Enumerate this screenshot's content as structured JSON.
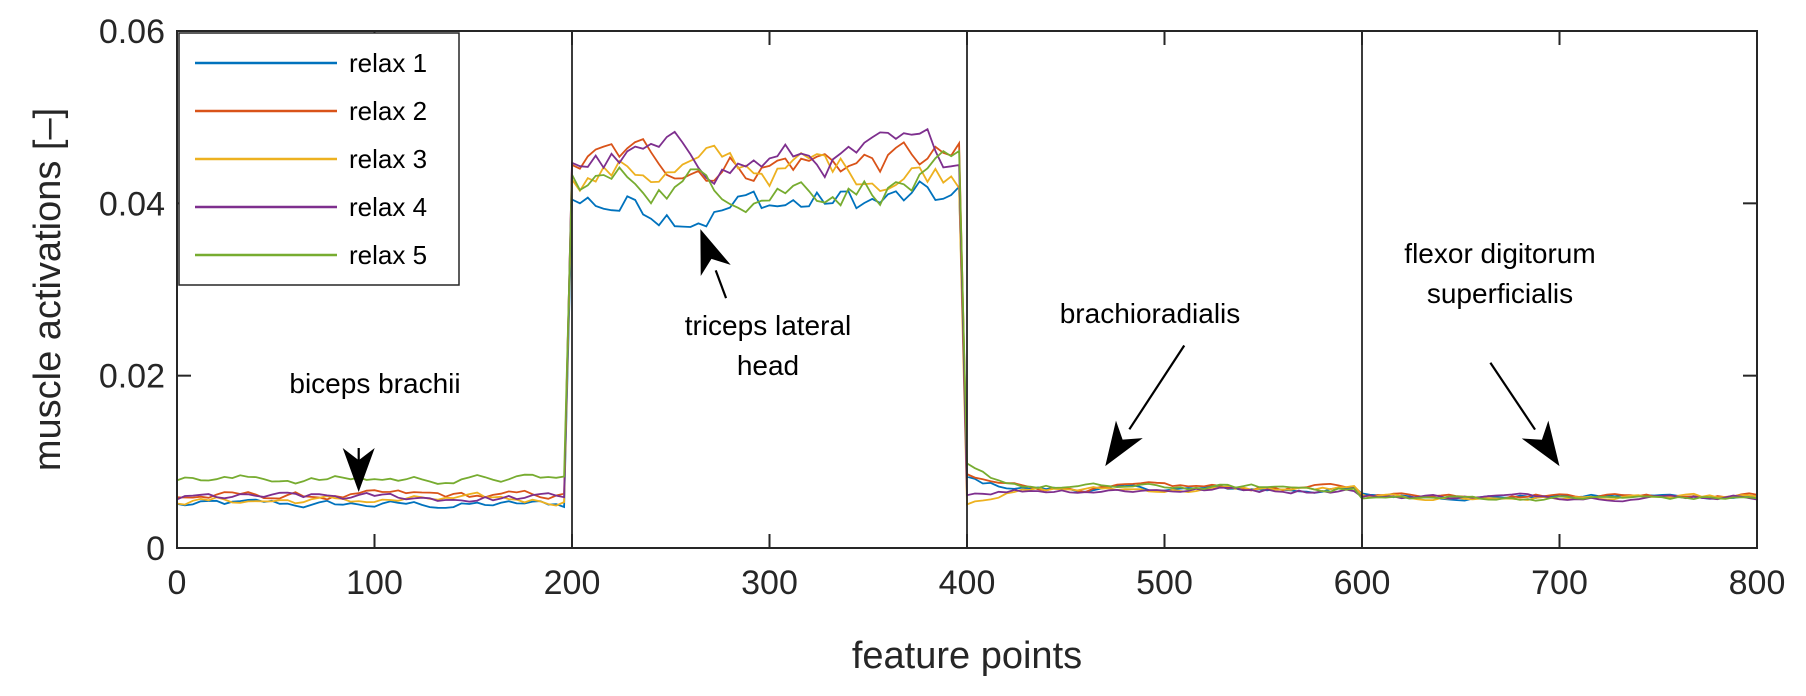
{
  "chart_data": {
    "type": "line",
    "xlabel": "feature points",
    "ylabel": "muscle activations [–]",
    "xlim": [
      0,
      800
    ],
    "ylim": [
      0,
      0.06
    ],
    "x_ticks": [
      "0",
      "100",
      "200",
      "300",
      "400",
      "500",
      "600",
      "700",
      "800"
    ],
    "y_ticks": [
      "0",
      "0.02",
      "0.04",
      "0.06"
    ],
    "segment_dividers": [
      200,
      400,
      600
    ],
    "legend_position": "top-left",
    "grid": false,
    "series_step": 4,
    "series": [
      {
        "name": "relax 1",
        "color": "#0072BD",
        "segment_levels": [
          0.005,
          0.04,
          0.0068,
          0.006
        ]
      },
      {
        "name": "relax 2",
        "color": "#D95319",
        "segment_levels": [
          0.006,
          0.045,
          0.007,
          0.0062
        ]
      },
      {
        "name": "relax 3",
        "color": "#EDB120",
        "segment_levels": [
          0.0055,
          0.044,
          0.0068,
          0.0058
        ]
      },
      {
        "name": "relax 4",
        "color": "#7E2F8E",
        "segment_levels": [
          0.0058,
          0.045,
          0.0068,
          0.006
        ]
      },
      {
        "name": "relax 5",
        "color": "#77AC30",
        "segment_levels": [
          0.008,
          0.0425,
          0.007,
          0.0058
        ]
      }
    ],
    "annotations": [
      {
        "lines": [
          "biceps brachii"
        ],
        "arrow_from": [
          92,
          0.0093
        ],
        "arrow_to": [
          92,
          0.0065
        ]
      },
      {
        "lines": [
          "triceps lateral",
          "head"
        ],
        "arrow_from": [
          278,
          0.029
        ],
        "arrow_to": [
          265,
          0.037
        ]
      },
      {
        "lines": [
          "brachioradialis"
        ],
        "arrow_from": [
          510,
          0.0235
        ],
        "arrow_to": [
          470,
          0.0095
        ]
      },
      {
        "lines": [
          "flexor digitorum",
          "superficialis"
        ],
        "arrow_from": [
          665,
          0.0215
        ],
        "arrow_to": [
          700,
          0.0095
        ]
      }
    ]
  }
}
